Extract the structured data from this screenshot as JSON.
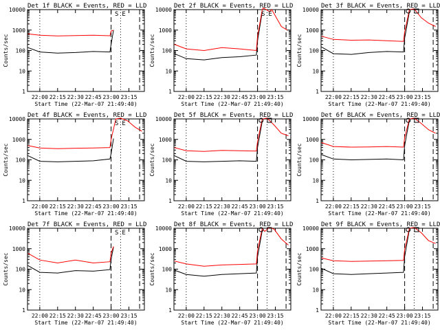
{
  "chart_data": [
    {
      "type": "line",
      "title": "Det 1f BLACK = Events, RED = LLD",
      "xlabel": "Start Time (22-Mar-07 21:49:40)",
      "ylabel": "Counts/sec",
      "yscale": "log",
      "ylim": [
        1,
        10000
      ],
      "yticks": [
        "1",
        "10",
        "100",
        "1000",
        "10000"
      ],
      "xlim": [
        "21:49:40",
        "23:28:00"
      ],
      "xticks": [
        "22:00",
        "22:15",
        "22:30",
        "22:45",
        "23:00",
        "23:15"
      ],
      "markers": [
        "S",
        "E"
      ],
      "series": [
        {
          "name": "Events",
          "color": "#000000",
          "x": [
            "21:50",
            "22:00",
            "22:15",
            "22:30",
            "22:45",
            "22:59",
            "23:00",
            "23:02"
          ],
          "values": [
            140,
            85,
            75,
            80,
            90,
            85,
            200,
            1000
          ]
        },
        {
          "name": "LLD",
          "color": "#ff0000",
          "x": [
            "21:50",
            "22:00",
            "22:15",
            "22:30",
            "22:45",
            "22:59",
            "23:00",
            "23:02"
          ],
          "values": [
            650,
            560,
            520,
            540,
            560,
            530,
            900,
            1000
          ]
        }
      ]
    },
    {
      "type": "line",
      "title": "Det 2f BLACK = Events, RED = LLD",
      "xlabel": "Start Time (22-Mar-07 21:49:40)",
      "ylabel": "Counts/sec",
      "yscale": "log",
      "ylim": [
        1,
        10000
      ],
      "yticks": [
        "1",
        "10",
        "100",
        "1000",
        "10000"
      ],
      "xlim": [
        "21:49:40",
        "23:28:00"
      ],
      "xticks": [
        "22:00",
        "22:15",
        "22:30",
        "22:45",
        "23:00",
        "23:15"
      ],
      "markers": [
        "S",
        "E"
      ],
      "series": [
        {
          "name": "Events",
          "color": "#000000",
          "x": [
            "21:50",
            "22:00",
            "22:15",
            "22:30",
            "22:45",
            "22:59",
            "23:00",
            "23:04"
          ],
          "values": [
            70,
            40,
            35,
            45,
            50,
            60,
            300,
            8000
          ]
        },
        {
          "name": "LLD",
          "color": "#ff0000",
          "x": [
            "21:50",
            "22:00",
            "22:15",
            "22:30",
            "22:45",
            "22:59",
            "23:00",
            "23:04",
            "23:05",
            "23:10",
            "23:12",
            "23:20",
            "23:25"
          ],
          "values": [
            200,
            120,
            100,
            140,
            120,
            100,
            500,
            10000,
            12000,
            8000,
            10000,
            1500,
            1000
          ]
        }
      ]
    },
    {
      "type": "line",
      "title": "Det 3f BLACK = Events, RED = LLD",
      "xlabel": "Start Time (22-Mar-07 21:49:40)",
      "ylabel": "Counts/sec",
      "yscale": "log",
      "ylim": [
        1,
        10000
      ],
      "yticks": [
        "1",
        "10",
        "100",
        "1000",
        "10000"
      ],
      "xlim": [
        "21:49:40",
        "23:28:00"
      ],
      "xticks": [
        "22:00",
        "22:15",
        "22:30",
        "22:45",
        "23:00",
        "23:15"
      ],
      "markers": [],
      "series": [
        {
          "name": "Events",
          "color": "#000000",
          "x": [
            "21:50",
            "22:00",
            "22:15",
            "22:30",
            "22:45",
            "22:59",
            "23:00",
            "23:04"
          ],
          "values": [
            150,
            70,
            65,
            80,
            90,
            85,
            400,
            8000
          ]
        },
        {
          "name": "LLD",
          "color": "#ff0000",
          "x": [
            "21:50",
            "22:00",
            "22:15",
            "22:30",
            "22:45",
            "22:59",
            "23:00",
            "23:04",
            "23:08",
            "23:14",
            "23:20",
            "23:26"
          ],
          "values": [
            500,
            350,
            320,
            330,
            300,
            280,
            800,
            10000,
            11000,
            4000,
            2200,
            1500
          ]
        }
      ]
    },
    {
      "type": "line",
      "title": "Det 4f BLACK = Events, RED = LLD",
      "xlabel": "Start Time (22-Mar-07 21:49:40)",
      "ylabel": "Counts/sec",
      "yscale": "log",
      "ylim": [
        1,
        10000
      ],
      "yticks": [
        "1",
        "10",
        "100",
        "1000",
        "10000"
      ],
      "xlim": [
        "21:49:40",
        "23:28:00"
      ],
      "xticks": [
        "22:00",
        "22:15",
        "22:30",
        "22:45",
        "23:00",
        "23:15"
      ],
      "markers": [
        "S",
        "E"
      ],
      "series": [
        {
          "name": "Events",
          "color": "#000000",
          "x": [
            "21:50",
            "22:00",
            "22:15",
            "22:30",
            "22:45",
            "22:59",
            "23:00",
            "23:02"
          ],
          "values": [
            160,
            85,
            80,
            85,
            90,
            110,
            200,
            1100
          ]
        },
        {
          "name": "LLD",
          "color": "#ff0000",
          "x": [
            "21:50",
            "22:00",
            "22:15",
            "22:30",
            "22:45",
            "22:59",
            "23:00",
            "23:04",
            "23:08",
            "23:14",
            "23:20",
            "23:26"
          ],
          "values": [
            500,
            380,
            350,
            370,
            380,
            400,
            1000,
            10000,
            11000,
            8000,
            4000,
            2500
          ]
        }
      ]
    },
    {
      "type": "line",
      "title": "Det 5f BLACK = Events, RED = LLD",
      "xlabel": "Start Time (22-Mar-07 21:49:40)",
      "ylabel": "Counts/sec",
      "yscale": "log",
      "ylim": [
        1,
        10000
      ],
      "yticks": [
        "1",
        "10",
        "100",
        "1000",
        "10000"
      ],
      "xlim": [
        "21:49:40",
        "23:28:00"
      ],
      "xticks": [
        "22:00",
        "22:15",
        "22:30",
        "22:45",
        "23:00",
        "23:15"
      ],
      "markers": [],
      "series": [
        {
          "name": "Events",
          "color": "#000000",
          "x": [
            "21:50",
            "22:00",
            "22:15",
            "22:30",
            "22:45",
            "22:59",
            "23:00",
            "23:04"
          ],
          "values": [
            160,
            85,
            80,
            85,
            90,
            85,
            400,
            8000
          ]
        },
        {
          "name": "LLD",
          "color": "#ff0000",
          "x": [
            "21:50",
            "22:00",
            "22:15",
            "22:30",
            "22:45",
            "22:59",
            "23:00",
            "23:04",
            "23:08",
            "23:14",
            "23:20",
            "23:26"
          ],
          "values": [
            400,
            280,
            260,
            290,
            280,
            270,
            800,
            10000,
            11000,
            5000,
            2000,
            1500
          ]
        }
      ]
    },
    {
      "type": "line",
      "title": "Det 6f BLACK = Events, RED = LLD",
      "xlabel": "Start Time (22-Mar-07 21:49:40)",
      "ylabel": "Counts/sec",
      "yscale": "log",
      "ylim": [
        1,
        10000
      ],
      "yticks": [
        "1",
        "10",
        "100",
        "1000",
        "10000"
      ],
      "xlim": [
        "21:49:40",
        "23:28:00"
      ],
      "xticks": [
        "22:00",
        "22:15",
        "22:30",
        "22:45",
        "23:00",
        "23:15"
      ],
      "markers": [],
      "series": [
        {
          "name": "Events",
          "color": "#000000",
          "x": [
            "21:50",
            "22:00",
            "22:15",
            "22:30",
            "22:45",
            "22:59",
            "23:00",
            "23:04"
          ],
          "values": [
            180,
            110,
            100,
            105,
            110,
            100,
            500,
            9000
          ]
        },
        {
          "name": "LLD",
          "color": "#ff0000",
          "x": [
            "21:50",
            "22:00",
            "22:15",
            "22:30",
            "22:45",
            "22:59",
            "23:00",
            "23:04",
            "23:08",
            "23:14",
            "23:20",
            "23:26"
          ],
          "values": [
            700,
            450,
            420,
            430,
            450,
            420,
            1200,
            10000,
            11000,
            6000,
            3000,
            2000
          ]
        }
      ]
    },
    {
      "type": "line",
      "title": "Det 7f BLACK = Events, RED = LLD",
      "xlabel": "Start Time (22-Mar-07 21:49:40)",
      "ylabel": "Counts/sec",
      "yscale": "log",
      "ylim": [
        1,
        10000
      ],
      "yticks": [
        "1",
        "10",
        "100",
        "1000",
        "10000"
      ],
      "xlim": [
        "21:49:40",
        "23:28:00"
      ],
      "xticks": [
        "22:00",
        "22:15",
        "22:30",
        "22:45",
        "23:00",
        "23:15"
      ],
      "markers": [
        "S",
        "E"
      ],
      "series": [
        {
          "name": "Events",
          "color": "#000000",
          "x": [
            "21:50",
            "22:00",
            "22:15",
            "22:30",
            "22:45",
            "22:59",
            "23:00",
            "23:02"
          ],
          "values": [
            150,
            70,
            65,
            85,
            80,
            95,
            300,
            1200
          ]
        },
        {
          "name": "LLD",
          "color": "#ff0000",
          "x": [
            "21:50",
            "22:00",
            "22:15",
            "22:30",
            "22:45",
            "22:59",
            "23:00",
            "23:02"
          ],
          "values": [
            600,
            280,
            200,
            280,
            200,
            230,
            600,
            1300
          ]
        }
      ]
    },
    {
      "type": "line",
      "title": "Det 8f BLACK = Events, RED = LLD",
      "xlabel": "Start Time (22-Mar-07 21:49:40)",
      "ylabel": "Counts/sec",
      "yscale": "log",
      "ylim": [
        1,
        10000
      ],
      "yticks": [
        "1",
        "10",
        "100",
        "1000",
        "10000"
      ],
      "xlim": [
        "21:49:40",
        "23:28:00"
      ],
      "xticks": [
        "22:00",
        "22:15",
        "22:30",
        "22:45",
        "23:00",
        "23:15"
      ],
      "markers": [],
      "series": [
        {
          "name": "Events",
          "color": "#000000",
          "x": [
            "21:50",
            "22:00",
            "22:15",
            "22:30",
            "22:45",
            "22:59",
            "23:00",
            "23:04"
          ],
          "values": [
            90,
            55,
            45,
            55,
            60,
            65,
            400,
            8000
          ]
        },
        {
          "name": "LLD",
          "color": "#ff0000",
          "x": [
            "21:50",
            "22:00",
            "22:15",
            "22:30",
            "22:45",
            "22:59",
            "23:00",
            "23:04",
            "23:06",
            "23:10",
            "23:14",
            "23:20",
            "23:26"
          ],
          "values": [
            250,
            180,
            140,
            160,
            170,
            180,
            800,
            10000,
            7000,
            11000,
            9000,
            3000,
            1500
          ]
        }
      ]
    },
    {
      "type": "line",
      "title": "Det 9f BLACK = Events, RED = LLD",
      "xlabel": "Start Time (22-Mar-07 21:49:40)",
      "ylabel": "Counts/sec",
      "yscale": "log",
      "ylim": [
        1,
        10000
      ],
      "yticks": [
        "1",
        "10",
        "100",
        "1000",
        "10000"
      ],
      "xlim": [
        "21:49:40",
        "23:28:00"
      ],
      "xticks": [
        "22:00",
        "22:15",
        "22:30",
        "22:45",
        "23:00",
        "23:15"
      ],
      "markers": [],
      "series": [
        {
          "name": "Events",
          "color": "#000000",
          "x": [
            "21:50",
            "22:00",
            "22:15",
            "22:30",
            "22:45",
            "22:59",
            "23:00",
            "23:04"
          ],
          "values": [
            110,
            60,
            55,
            60,
            65,
            70,
            400,
            9000
          ]
        },
        {
          "name": "LLD",
          "color": "#ff0000",
          "x": [
            "21:50",
            "22:00",
            "22:15",
            "22:30",
            "22:45",
            "22:59",
            "23:00",
            "23:04",
            "23:08",
            "23:14",
            "23:20",
            "23:26"
          ],
          "values": [
            350,
            260,
            240,
            250,
            260,
            270,
            900,
            10000,
            11000,
            6000,
            2500,
            1800
          ]
        }
      ]
    }
  ]
}
